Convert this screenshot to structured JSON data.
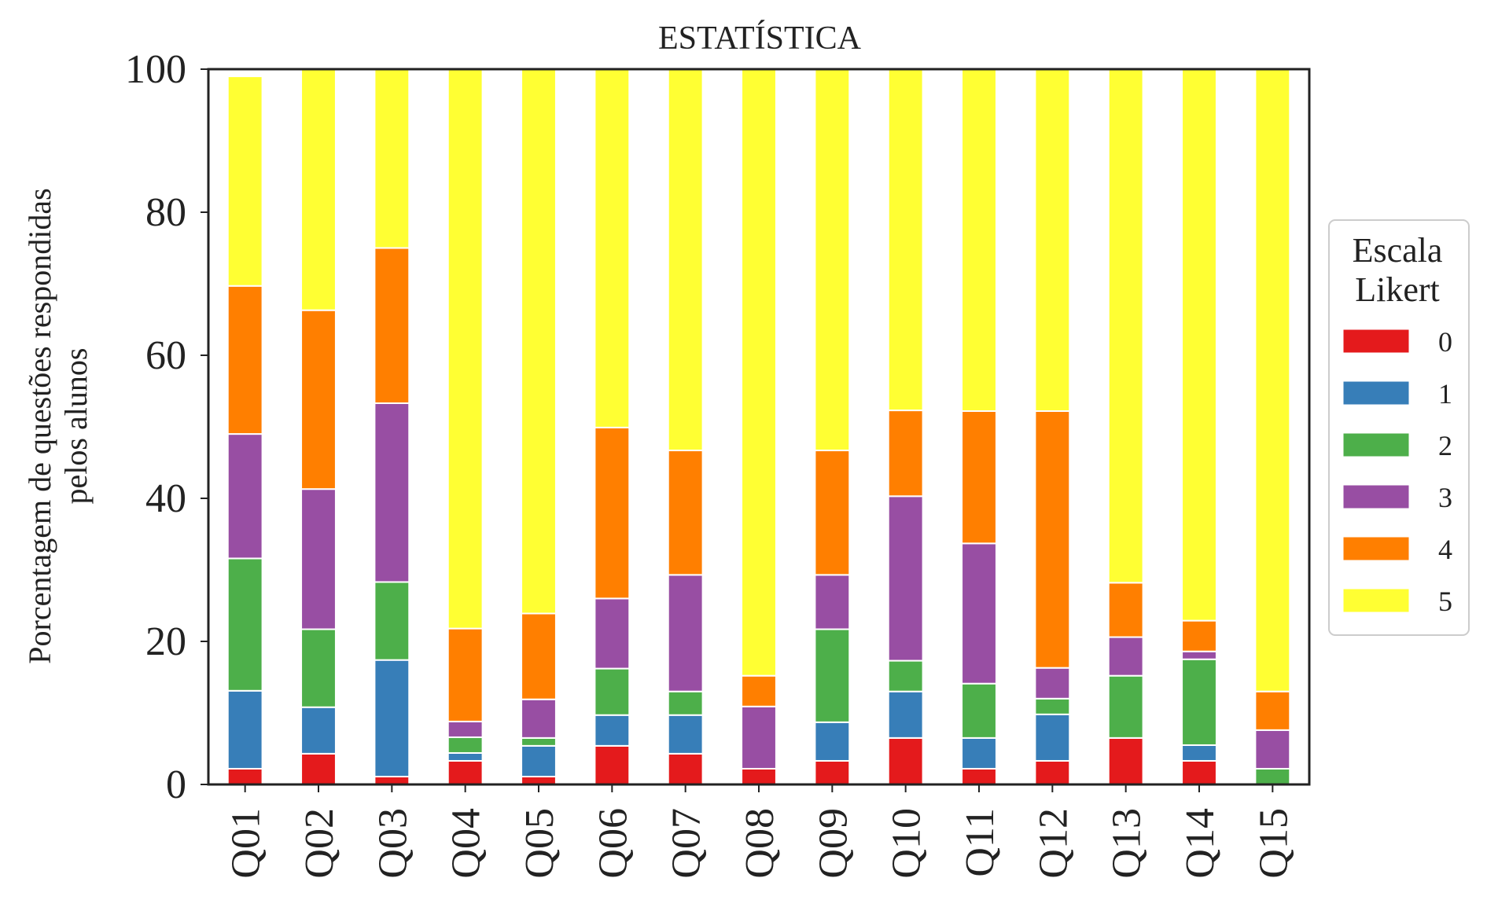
{
  "chart_data": {
    "type": "bar",
    "stacked": true,
    "title": "ESTATÍSTICA",
    "ylabel_lines": [
      "Porcentagem de questões respondidas",
      "pelos alunos"
    ],
    "xlabel": "",
    "ylim": [
      0,
      100
    ],
    "yticks": [
      0,
      20,
      40,
      60,
      80,
      100
    ],
    "grid": false,
    "categories": [
      "Q01",
      "Q02",
      "Q03",
      "Q04",
      "Q05",
      "Q06",
      "Q07",
      "Q08",
      "Q09",
      "Q10",
      "Q11",
      "Q12",
      "Q13",
      "Q14",
      "Q15"
    ],
    "legend": {
      "title_lines": [
        "Escala",
        "Likert"
      ],
      "placement": "right"
    },
    "series": [
      {
        "name": "0",
        "color": "#e41a1c",
        "values": [
          2.2,
          4.3,
          1.1,
          3.3,
          1.1,
          5.4,
          4.3,
          2.2,
          3.3,
          6.5,
          2.2,
          3.3,
          6.5,
          3.3,
          0
        ]
      },
      {
        "name": "1",
        "color": "#377eb8",
        "values": [
          10.9,
          6.5,
          16.3,
          1.1,
          4.3,
          4.3,
          5.4,
          0,
          5.4,
          6.5,
          4.3,
          6.5,
          0,
          2.2,
          0
        ]
      },
      {
        "name": "2",
        "color": "#4daf4a",
        "values": [
          18.5,
          10.9,
          10.9,
          2.2,
          1.1,
          6.5,
          3.3,
          0,
          13.0,
          4.3,
          7.6,
          2.2,
          8.7,
          12.0,
          2.2
        ]
      },
      {
        "name": "3",
        "color": "#984ea3",
        "values": [
          17.4,
          19.6,
          25.0,
          2.2,
          5.4,
          9.8,
          16.3,
          8.7,
          7.6,
          23.0,
          19.6,
          4.3,
          5.4,
          1.1,
          5.4
        ]
      },
      {
        "name": "4",
        "color": "#ff7f00",
        "values": [
          20.7,
          25.0,
          21.7,
          13.0,
          12.0,
          23.9,
          17.4,
          4.3,
          17.4,
          12.0,
          18.5,
          35.9,
          7.6,
          4.3,
          5.4
        ]
      },
      {
        "name": "5",
        "color": "#ffff33",
        "values": [
          29.3,
          33.7,
          25.0,
          78.2,
          76.1,
          50.1,
          53.3,
          84.8,
          53.3,
          47.7,
          47.8,
          47.8,
          71.8,
          77.1,
          87.0
        ]
      }
    ]
  }
}
